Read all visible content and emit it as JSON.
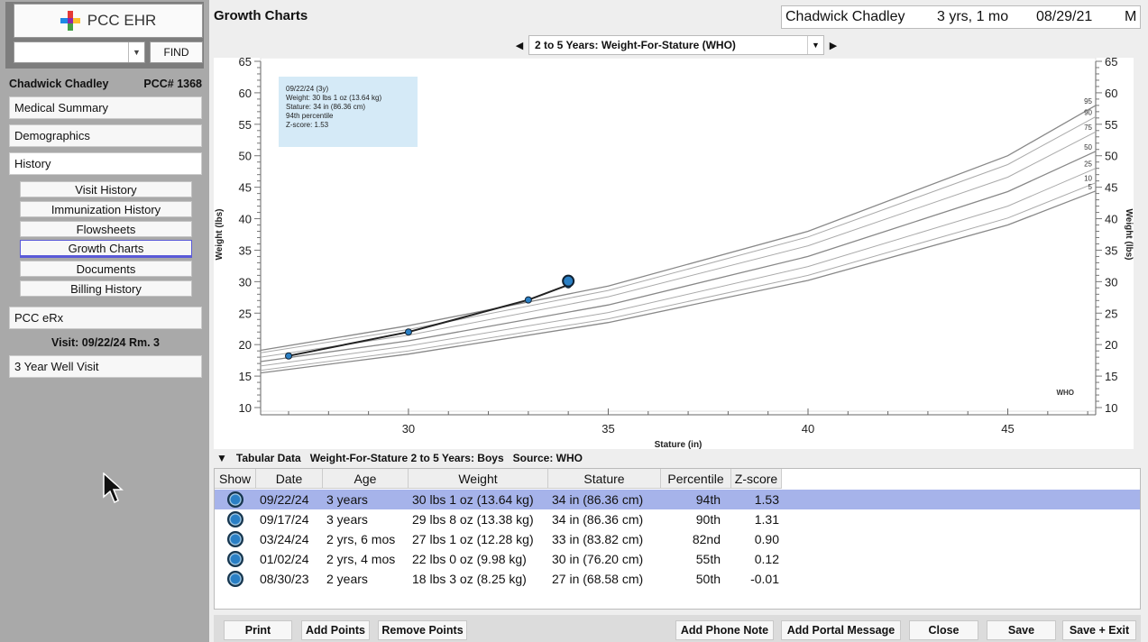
{
  "app": {
    "name": "PCC EHR",
    "find_label": "FIND",
    "find_value": ""
  },
  "sidebar": {
    "patient_name": "Chadwick Chadley",
    "pcc_number": "PCC# 1368",
    "sections": {
      "medical_summary": "Medical Summary",
      "demographics": "Demographics",
      "history": "History",
      "erx": "PCC eRx",
      "visit_info": "Visit: 09/22/24  Rm. 3",
      "visit_type": "3 Year Well Visit"
    },
    "history_items": [
      "Visit History",
      "Immunization History",
      "Flowsheets",
      "Growth Charts",
      "Documents",
      "Billing History"
    ],
    "selected_history_item": "Growth Charts"
  },
  "header": {
    "page_title": "Growth Charts",
    "patient_name": "Chadwick Chadley",
    "age": "3 yrs, 1 mo",
    "dob": "08/29/21",
    "sex": "M"
  },
  "chart_nav": {
    "selected_chart": "2 to 5 Years: Weight-For-Stature (WHO)"
  },
  "tooltip": {
    "lines": [
      "09/22/24 (3y)",
      "Weight: 30 lbs 1 oz   (13.64 kg)",
      "Stature: 34 in   (86.36 cm)",
      "94th percentile",
      "Z-score: 1.53"
    ]
  },
  "chart_data": {
    "type": "line",
    "xlabel": "Stature (in)",
    "ylabel": "Weight (lbs)",
    "xlim": [
      26.3,
      47.2
    ],
    "ylim": [
      10,
      65
    ],
    "x_ticks": [
      30,
      35,
      40,
      45
    ],
    "y_ticks": [
      10,
      15,
      20,
      25,
      30,
      35,
      40,
      45,
      50,
      55,
      60,
      65
    ],
    "grid": false,
    "source_label": "WHO",
    "percentile_curves": [
      {
        "name": "95",
        "points": [
          [
            26.3,
            19.1
          ],
          [
            30,
            23.0
          ],
          [
            35,
            29.3
          ],
          [
            40,
            38.0
          ],
          [
            45,
            50.0
          ],
          [
            47.2,
            58.0
          ]
        ]
      },
      {
        "name": "90",
        "points": [
          [
            26.3,
            18.7
          ],
          [
            30,
            22.4
          ],
          [
            35,
            28.6
          ],
          [
            40,
            37.1
          ],
          [
            45,
            48.6
          ],
          [
            47.2,
            56.2
          ]
        ]
      },
      {
        "name": "75",
        "points": [
          [
            26.3,
            18.0
          ],
          [
            30,
            21.5
          ],
          [
            35,
            27.6
          ],
          [
            40,
            35.7
          ],
          [
            45,
            46.6
          ],
          [
            47.2,
            53.8
          ]
        ]
      },
      {
        "name": "50",
        "points": [
          [
            26.3,
            17.3
          ],
          [
            30,
            20.6
          ],
          [
            35,
            26.3
          ],
          [
            40,
            34.0
          ],
          [
            45,
            44.3
          ],
          [
            47.2,
            50.7
          ]
        ]
      },
      {
        "name": "25",
        "points": [
          [
            26.3,
            16.6
          ],
          [
            30,
            19.8
          ],
          [
            35,
            25.1
          ],
          [
            40,
            32.4
          ],
          [
            45,
            42.0
          ],
          [
            47.2,
            48.0
          ]
        ]
      },
      {
        "name": "10",
        "points": [
          [
            26.3,
            15.9
          ],
          [
            30,
            19.0
          ],
          [
            35,
            24.1
          ],
          [
            40,
            31.0
          ],
          [
            45,
            40.1
          ],
          [
            47.2,
            45.7
          ]
        ]
      },
      {
        "name": "5",
        "points": [
          [
            26.3,
            15.5
          ],
          [
            30,
            18.5
          ],
          [
            35,
            23.5
          ],
          [
            40,
            30.2
          ],
          [
            45,
            39.0
          ],
          [
            47.2,
            44.4
          ]
        ]
      }
    ],
    "patient_series": {
      "name": "Patient",
      "points": [
        [
          27,
          18.2
        ],
        [
          30,
          22.0
        ],
        [
          33,
          27.1
        ],
        [
          34,
          29.5
        ],
        [
          34,
          30.1
        ]
      ]
    }
  },
  "tabular": {
    "toggle": "▼",
    "title": "Tabular Data",
    "subtitle": "Weight-For-Stature 2 to 5 Years: Boys",
    "source": "Source: WHO",
    "columns": [
      "Show",
      "Date",
      "Age",
      "Weight",
      "Stature",
      "Percentile",
      "Z-score"
    ],
    "rows": [
      {
        "date": "09/22/24",
        "age": "3 years",
        "weight": "30 lbs 1 oz   (13.64 kg)",
        "stature": "34 in   (86.36 cm)",
        "percentile": "94th",
        "zscore": "1.53"
      },
      {
        "date": "09/17/24",
        "age": "3 years",
        "weight": "29 lbs 8 oz   (13.38 kg)",
        "stature": "34 in   (86.36 cm)",
        "percentile": "90th",
        "zscore": "1.31"
      },
      {
        "date": "03/24/24",
        "age": "2 yrs, 6 mos",
        "weight": "27 lbs 1 oz   (12.28 kg)",
        "stature": "33 in   (83.82 cm)",
        "percentile": "82nd",
        "zscore": "0.90"
      },
      {
        "date": "01/02/24",
        "age": "2 yrs, 4 mos",
        "weight": "22 lbs 0 oz   (9.98 kg)",
        "stature": "30 in   (76.20 cm)",
        "percentile": "55th",
        "zscore": "0.12"
      },
      {
        "date": "08/30/23",
        "age": "2 years",
        "weight": "18 lbs 3 oz   (8.25 kg)",
        "stature": "27 in   (68.58 cm)",
        "percentile": "50th",
        "zscore": "-0.01"
      }
    ]
  },
  "buttons": {
    "print": "Print",
    "add_points": "Add Points",
    "remove_points": "Remove Points",
    "add_phone_note": "Add Phone Note",
    "add_portal_message": "Add Portal Message",
    "close": "Close",
    "save": "Save",
    "save_exit": "Save + Exit"
  },
  "colors": {
    "selected_row": "#a6b3ea",
    "point": "#2a7fc4",
    "tooltip_bg": "#d5eaf7"
  }
}
